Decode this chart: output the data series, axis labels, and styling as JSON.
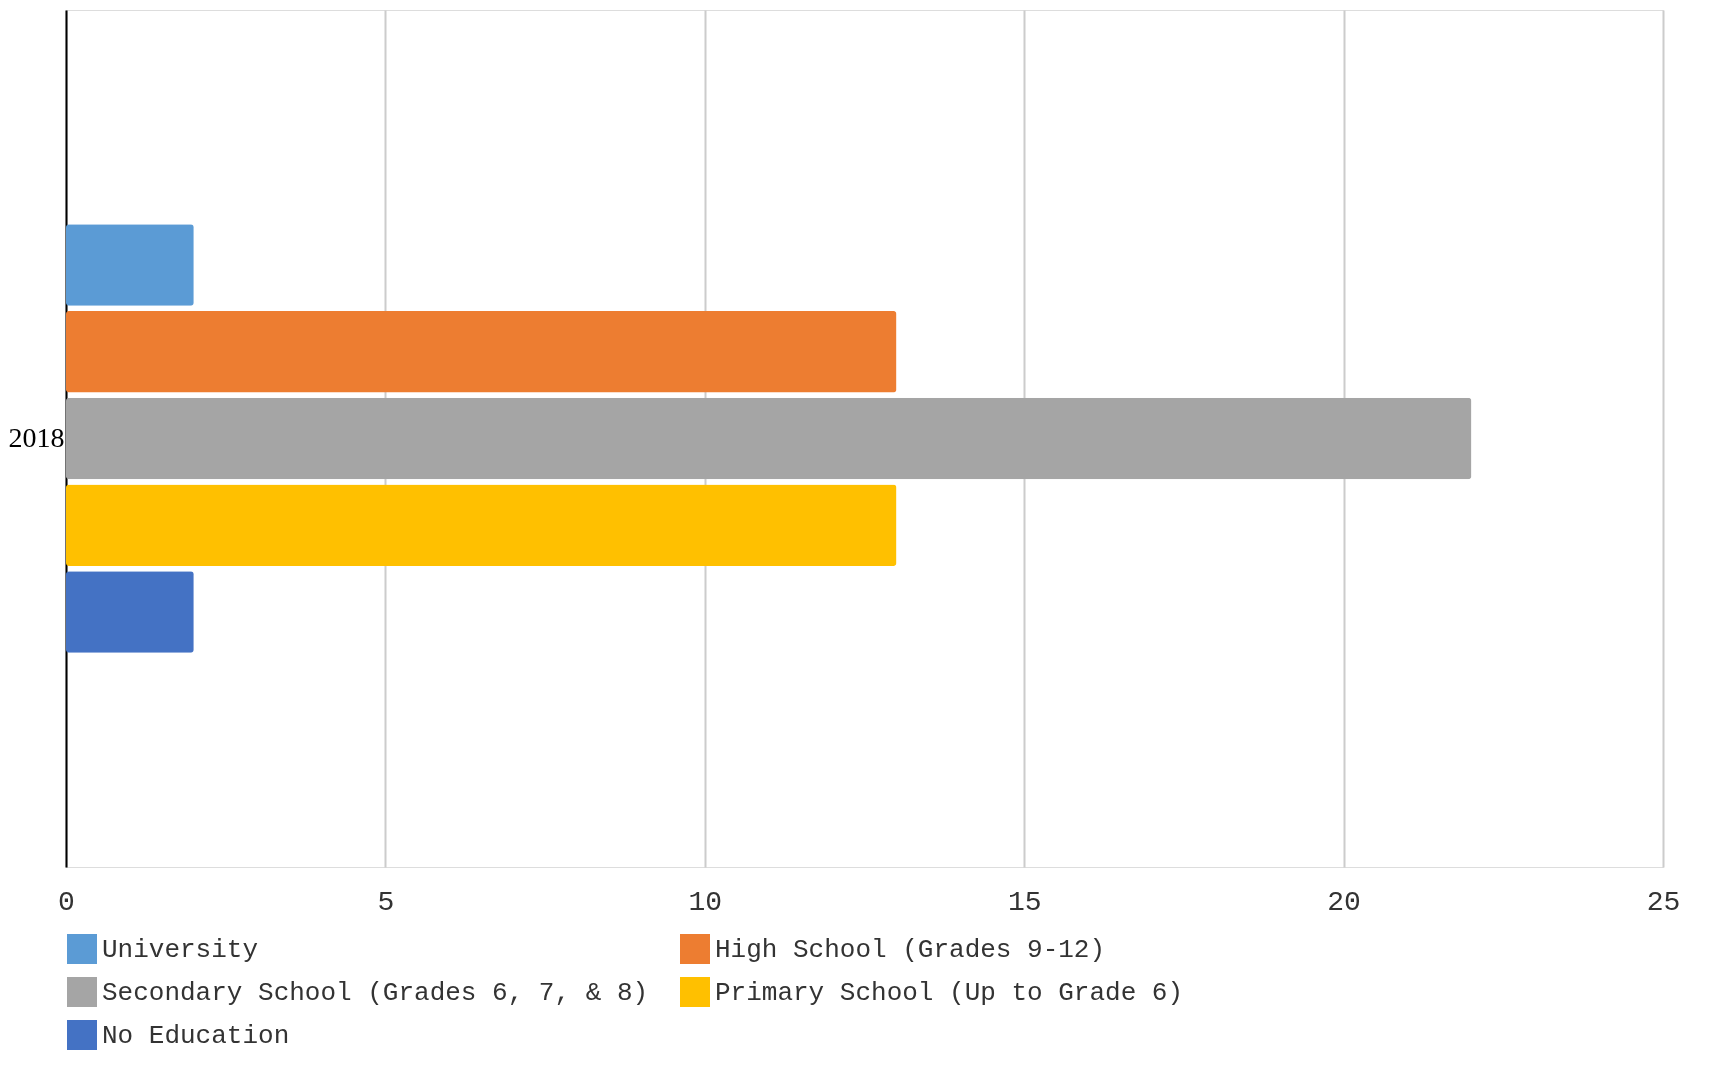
{
  "chart_data": {
    "type": "bar",
    "orientation": "horizontal",
    "categories": [
      "2018"
    ],
    "series": [
      {
        "name": "University",
        "color": "#5b9bd5",
        "values": [
          2
        ]
      },
      {
        "name": "High School (Grades 9-12)",
        "color": "#ed7d31",
        "values": [
          13
        ]
      },
      {
        "name": "Secondary School (Grades 6, 7, & 8)",
        "color": "#a5a5a5",
        "values": [
          22
        ]
      },
      {
        "name": "Primary School (Up to Grade 6)",
        "color": "#ffc000",
        "values": [
          13
        ]
      },
      {
        "name": "No Education",
        "color": "#4472c4",
        "values": [
          2
        ]
      }
    ],
    "xlim": [
      0,
      25
    ],
    "xticks": [
      0,
      5,
      10,
      15,
      20,
      25
    ],
    "grid": "x",
    "legend": "bottom"
  }
}
